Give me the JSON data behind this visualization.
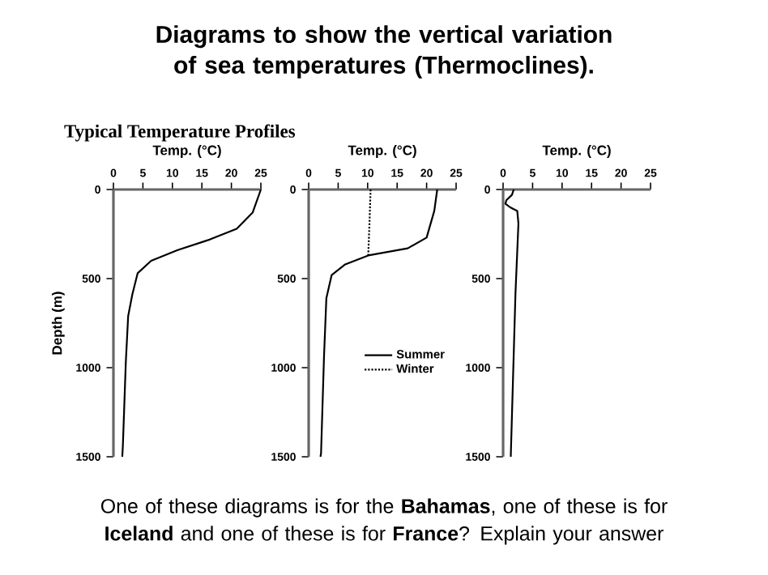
{
  "chart_data": [
    {
      "type": "line",
      "title": "Diagrams to show the vertical variation of sea temperatures (Thermoclines).",
      "subtitle": "Typical Temperature Profiles",
      "xlabel": "Temp. (°C)",
      "ylabel": "Depth (m)",
      "xlim": [
        0,
        25
      ],
      "xticks": [
        0,
        5,
        10,
        15,
        20,
        25
      ],
      "ylim": [
        1500,
        0
      ],
      "yticks": [
        0,
        500,
        1000,
        1500
      ],
      "annotations": [
        "One of these diagrams is for the **Bahamas**, one of these is for **Iceland**  and one of these is for **France**?  Explain your answer"
      ],
      "series": [
        {
          "color": "#000000",
          "line_style": "solid",
          "x": [
            25,
            23.6,
            20.9,
            16.4,
            10.9,
            6.4,
            4.1,
            3.2,
            2.5,
            2.1,
            1.6,
            1.5
          ],
          "values": [
            0,
            130,
            220,
            280,
            340,
            400,
            470,
            590,
            710,
            970,
            1440,
            1500
          ]
        }
      ]
    },
    {
      "type": "line",
      "xlabel": "Temp. (°C)",
      "xlim": [
        0,
        25
      ],
      "xticks": [
        0,
        5,
        10,
        15,
        20,
        25
      ],
      "ylim": [
        1500,
        0
      ],
      "yticks": [
        0,
        500,
        1000,
        1500
      ],
      "legend": "right",
      "series": [
        {
          "name": "Summer",
          "color": "#000000",
          "line_style": "solid",
          "x": [
            21.8,
            21.3,
            20.0,
            16.8,
            10.1,
            6.2,
            3.9,
            3.0,
            2.6,
            2.1,
            2.0
          ],
          "values": [
            0,
            120,
            270,
            330,
            370,
            420,
            480,
            610,
            940,
            1480,
            1500
          ]
        },
        {
          "name": "Winter",
          "color": "#000000",
          "line_style": "dotted",
          "x": [
            10.5,
            10.3,
            10.1
          ],
          "values": [
            0,
            200,
            370
          ]
        }
      ]
    },
    {
      "type": "line",
      "xlabel": "Temp. (°C)",
      "xlim": [
        0,
        25
      ],
      "xticks": [
        0,
        5,
        10,
        15,
        20,
        25
      ],
      "ylim": [
        1500,
        0
      ],
      "yticks": [
        0,
        500,
        1000,
        1500
      ],
      "series": [
        {
          "color": "#000000",
          "line_style": "solid",
          "x": [
            1.8,
            1.5,
            0.55,
            0.4,
            1.2,
            2.4,
            2.6,
            2.1,
            1.7,
            1.3
          ],
          "values": [
            0,
            30,
            60,
            80,
            100,
            120,
            190,
            580,
            1040,
            1500
          ]
        }
      ]
    }
  ]
}
